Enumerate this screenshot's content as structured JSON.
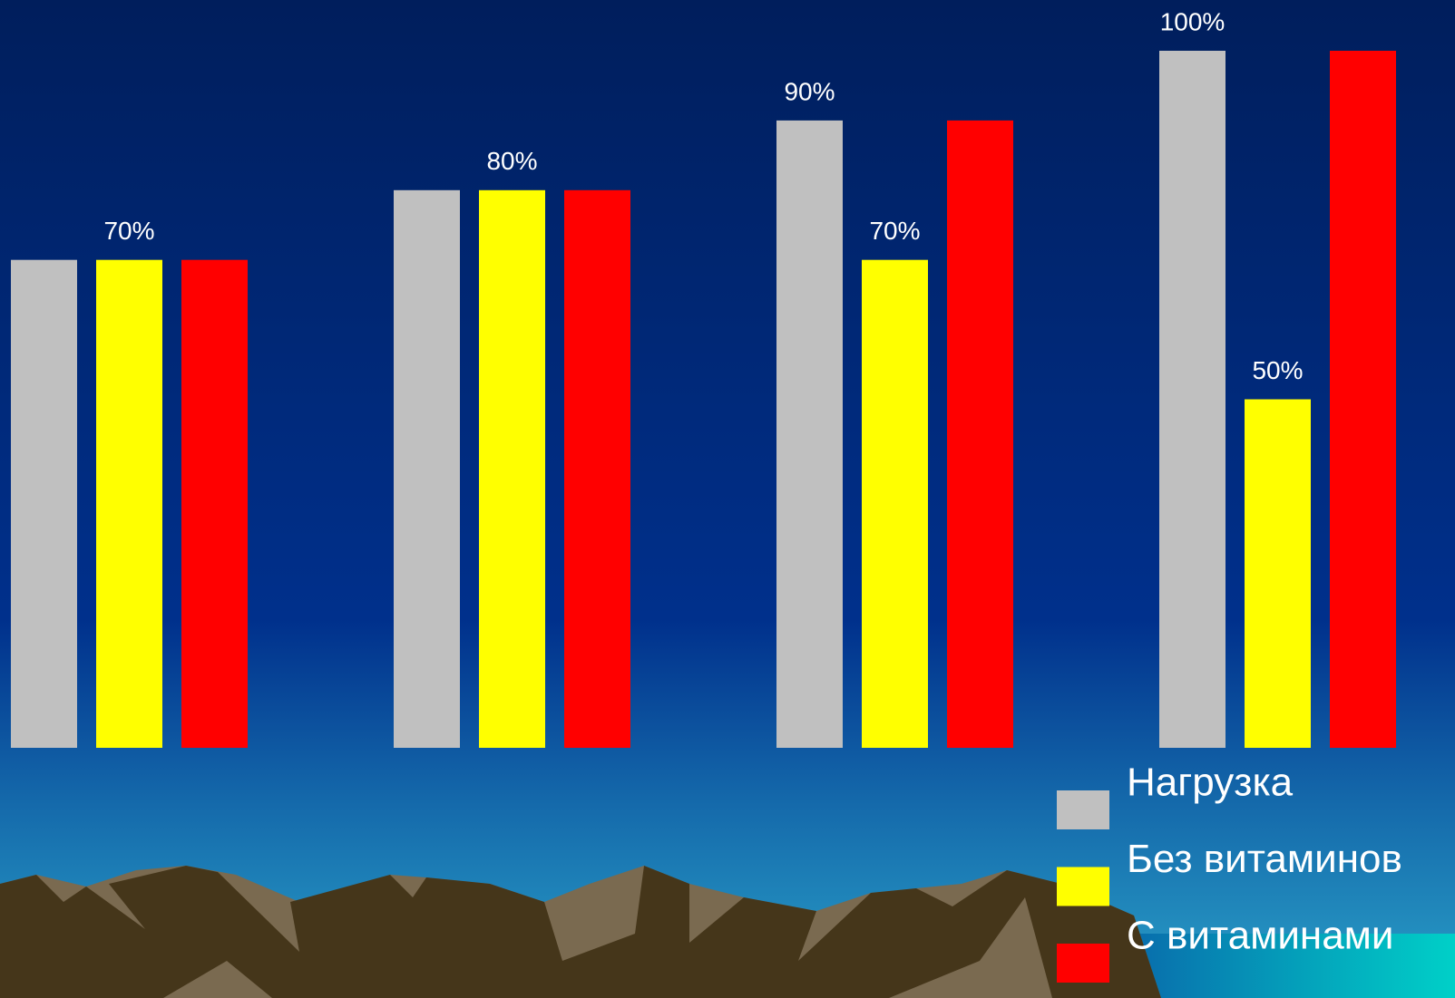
{
  "chart_data": {
    "type": "bar",
    "categories": [
      null,
      null,
      null,
      null
    ],
    "series": [
      {
        "name": "Нагрузка",
        "color": "#c0c0c0",
        "values": [
          70,
          80,
          90,
          100
        ],
        "value_labels": [
          null,
          null,
          "90%",
          "100%"
        ]
      },
      {
        "name": "Без витаминов",
        "color": "#ffff00",
        "values": [
          70,
          80,
          70,
          50
        ],
        "value_labels": [
          "70%",
          "80%",
          "70%",
          "50%"
        ]
      },
      {
        "name": "С витаминами",
        "color": "#ff0000",
        "values": [
          70,
          80,
          90,
          100
        ],
        "value_labels": [
          null,
          null,
          null,
          null
        ]
      }
    ],
    "ylim": [
      0,
      100
    ]
  }
}
